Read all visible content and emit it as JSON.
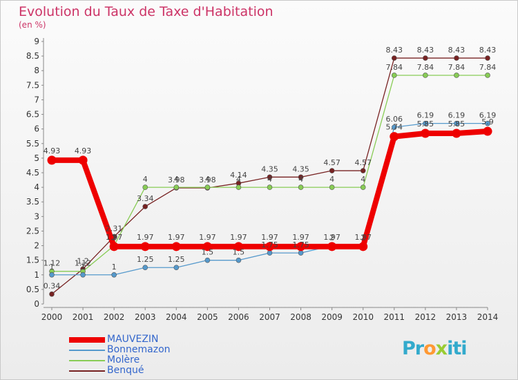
{
  "chart_data": {
    "type": "line",
    "title": "Evolution du Taux de Taxe d'Habitation",
    "subtitle": "(en %)",
    "x": [
      "2000",
      "2001",
      "2002",
      "2003",
      "2004",
      "2005",
      "2006",
      "2007",
      "2008",
      "2009",
      "2010",
      "2011",
      "2012",
      "2013",
      "2014"
    ],
    "ylim": [
      0,
      9
    ],
    "yticks": [
      "0",
      "0.5",
      "1",
      "1.5",
      "2",
      "2.5",
      "3",
      "3.5",
      "4",
      "4.5",
      "5",
      "5.5",
      "6",
      "6.5",
      "7",
      "7.5",
      "8",
      "8.5",
      "9"
    ],
    "grid": false,
    "legend_placement": "bottom-left",
    "series": [
      {
        "name": "MAUVEZIN",
        "color": "#ee0000",
        "values": [
          4.93,
          4.93,
          1.97,
          1.97,
          1.97,
          1.97,
          1.97,
          1.97,
          1.97,
          1.97,
          1.97,
          5.74,
          5.85,
          5.85,
          5.92
        ],
        "labels": [
          "4.93",
          "4.93",
          "1.97",
          "1.97",
          "1.97",
          "1.97",
          "1.97",
          "1.97",
          "1.97",
          "1.97",
          "1.97",
          "5.74",
          "5.85",
          "5.85",
          "5.9"
        ]
      },
      {
        "name": "Bonnemazon",
        "color": "#5599cc",
        "values": [
          1,
          1,
          1,
          1.25,
          1.25,
          1.5,
          1.5,
          1.75,
          1.75,
          2,
          2,
          6.06,
          6.19,
          6.19,
          6.19
        ],
        "labels": [
          "1",
          "1",
          "1",
          "1.25",
          "1.25",
          "1.5",
          "1.5",
          "1.75",
          "1.75",
          "2",
          "2",
          "6.06",
          "6.19",
          "6.19",
          "6.19"
        ]
      },
      {
        "name": "Molère",
        "color": "#88cc55",
        "values": [
          1.12,
          1.12,
          2,
          4,
          4,
          4,
          4,
          4,
          4,
          4,
          4,
          7.84,
          7.84,
          7.84,
          7.84
        ],
        "labels": [
          "1.12",
          "1.12",
          "2",
          "4",
          "4",
          "4",
          "4",
          "4",
          "4",
          "4",
          "4",
          "7.84",
          "7.84",
          "7.84",
          "7.84"
        ]
      },
      {
        "name": "Benqué",
        "color": "#772222",
        "values": [
          0.34,
          1.2,
          2.31,
          3.34,
          3.98,
          3.98,
          4.14,
          4.35,
          4.35,
          4.57,
          4.57,
          8.43,
          8.43,
          8.43,
          8.43
        ],
        "labels": [
          "0.34",
          "1.2",
          "2.31",
          "3.34",
          "3.98",
          "3.98",
          "4.14",
          "4.35",
          "4.35",
          "4.57",
          "4.57",
          "8.43",
          "8.43",
          "8.43",
          "8.43"
        ]
      }
    ]
  },
  "logo": {
    "p1": "Pr",
    "o": "o",
    "x": "x",
    "p2": "iti"
  }
}
